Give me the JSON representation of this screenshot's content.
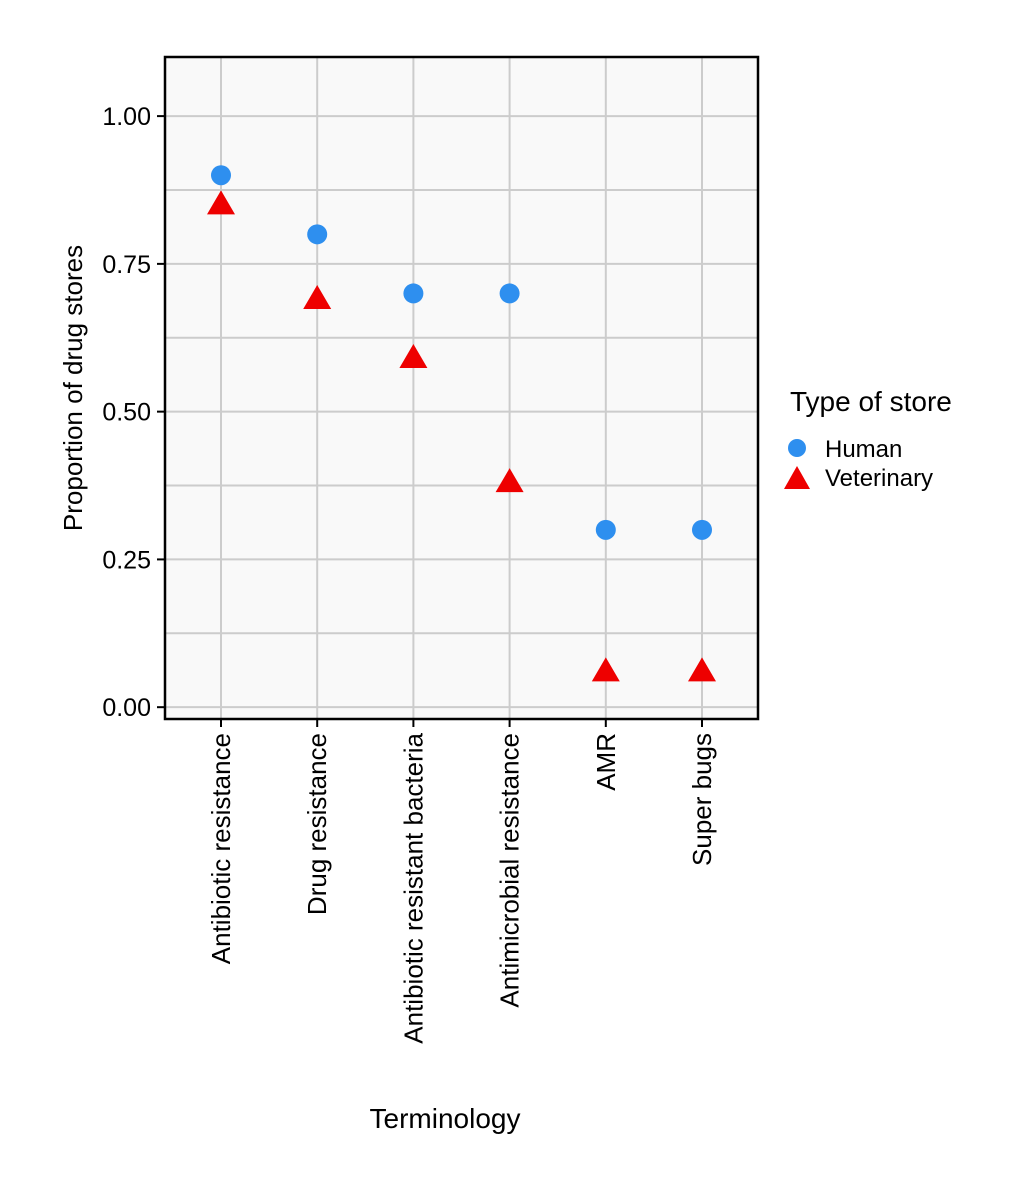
{
  "chart_data": {
    "type": "scatter",
    "title": "",
    "xlabel": "Terminology",
    "ylabel": "Proportion of drug stores",
    "categories": [
      "Antibiotic resistance",
      "Drug resistance",
      "Antibiotic resistant bacteria",
      "Antimicrobial resistance",
      "AMR",
      "Super bugs"
    ],
    "series": [
      {
        "name": "Human",
        "marker": "circle",
        "color": "#2e8fef",
        "values": [
          0.9,
          0.8,
          0.7,
          0.7,
          0.3,
          0.3
        ]
      },
      {
        "name": "Veterinary",
        "marker": "triangle",
        "color": "#ee0000",
        "values": [
          0.85,
          0.69,
          0.59,
          0.38,
          0.06,
          0.06
        ]
      }
    ],
    "ylim": [
      -0.02,
      1.1
    ],
    "yticks": [
      "0.00",
      "0.25",
      "0.50",
      "0.75",
      "1.00"
    ],
    "ytick_values": [
      0,
      0.25,
      0.5,
      0.75,
      1.0
    ],
    "grid": true,
    "legend": {
      "title": "Type of store",
      "position": "right"
    },
    "panel_background": "#f9f9f9",
    "grid_color": "#cccccc"
  }
}
